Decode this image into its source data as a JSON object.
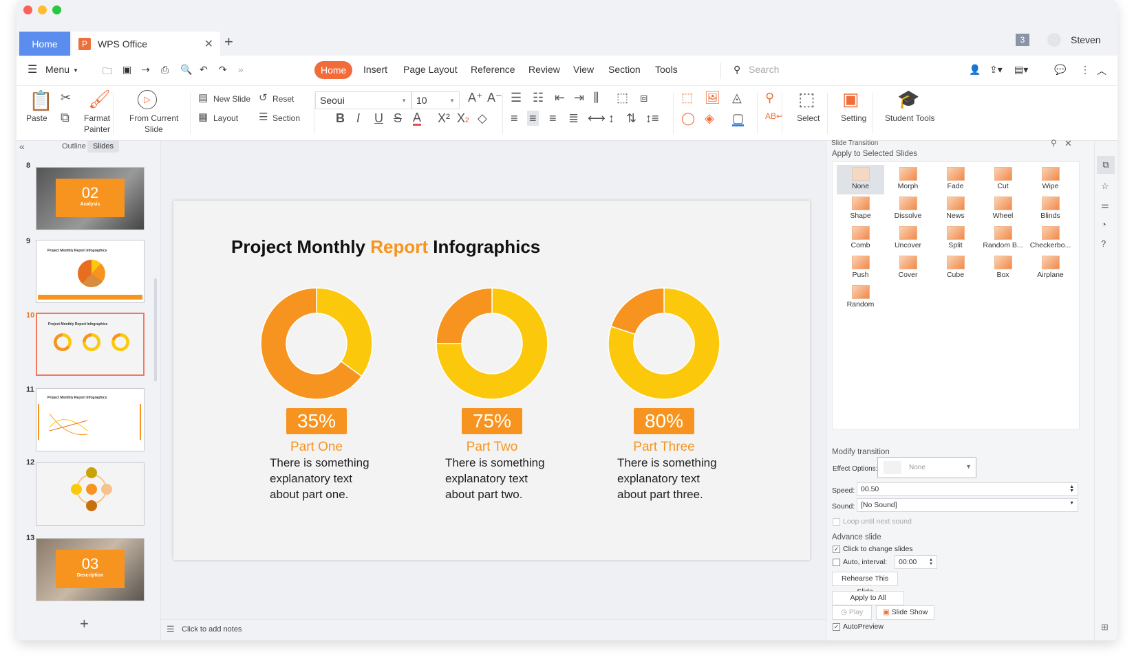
{
  "window": {
    "home_tab": "Home",
    "doc_tab": "WPS Office",
    "badge": "3",
    "user": "Steven"
  },
  "menubar": {
    "menu_label": "Menu",
    "tabs": [
      "Home",
      "Insert",
      "Page Layout",
      "Reference",
      "Review",
      "View",
      "Section",
      "Tools"
    ],
    "active_tab": "Home",
    "search_placeholder": "Search"
  },
  "ribbon": {
    "paste": "Paste",
    "format_painter_1": "Farmat",
    "format_painter_2": "Painter",
    "from_current_1": "From Current",
    "from_current_2": "Slide",
    "new_slide": "New Slide",
    "reset": "Reset",
    "layout": "Layout",
    "section": "Section",
    "font": "Seoui",
    "size": "10",
    "select": "Select",
    "setting": "Setting",
    "student_tools": "Student Tools"
  },
  "left_panel": {
    "tabs": [
      "Outline",
      "Slides"
    ],
    "active_tab": "Slides",
    "slides": [
      {
        "number": "8",
        "big": "02",
        "sub": "Analysis"
      },
      {
        "number": "9",
        "title": "Project Monthly Report Infographics"
      },
      {
        "number": "10",
        "title": "Project Monthly Report Infographics"
      },
      {
        "number": "11",
        "title": "Project Monthly Report Infographics"
      },
      {
        "number": "12"
      },
      {
        "number": "13",
        "big": "03",
        "sub": "Description"
      }
    ],
    "active_slide": "10"
  },
  "slide": {
    "title_1": "Project Monthly ",
    "title_2": "Report",
    "title_3": " Infographics",
    "parts": [
      {
        "pct": "35%",
        "name": "Part One",
        "lines": [
          "There is something",
          "explanatory text",
          "about part one."
        ]
      },
      {
        "pct": "75%",
        "name": "Part Two",
        "lines": [
          "There is something",
          "explanatory text",
          "about part two."
        ]
      },
      {
        "pct": "80%",
        "name": "Part Three",
        "lines": [
          "There is something",
          "explanatory text",
          "about part three."
        ]
      }
    ]
  },
  "chart_data": [
    {
      "type": "pie",
      "donut": true,
      "label": "Part One",
      "values": [
        35,
        65
      ],
      "colors": [
        "#fcc80c",
        "#f7941f"
      ]
    },
    {
      "type": "pie",
      "donut": true,
      "label": "Part Two",
      "values": [
        75,
        25
      ],
      "colors": [
        "#fcc80c",
        "#f7941f"
      ]
    },
    {
      "type": "pie",
      "donut": true,
      "label": "Part Three",
      "values": [
        80,
        20
      ],
      "colors": [
        "#fcc80c",
        "#f7941f"
      ]
    }
  ],
  "notes": {
    "placeholder": "Click to add notes"
  },
  "transition": {
    "header": "Slide Transition",
    "apply_selected": "Apply to Selected Slides",
    "effects": [
      "None",
      "Morph",
      "Fade",
      "Cut",
      "Wipe",
      "Shape",
      "Dissolve",
      "News",
      "Wheel",
      "Blinds",
      "Comb",
      "Uncover",
      "Split",
      "Random B...",
      "Checkerbo...",
      "Push",
      "Cover",
      "Cube",
      "Box",
      "Airplane",
      "Random"
    ],
    "selected": "None",
    "modify": "Modify transition",
    "effect_options_label": "Effect Options:",
    "effect_options_value": "None",
    "speed_label": "Speed:",
    "speed_value": "00.50",
    "sound_label": "Sound:",
    "sound_value": "[No Sound]",
    "loop": "Loop until next sound",
    "advance": "Advance slide",
    "click_change": "Click to change slides",
    "click_change_checked": true,
    "auto_interval": "Auto, interval:",
    "auto_checked": false,
    "interval_value": "00:00",
    "rehearse": "Rehearse This Slide",
    "apply_all": "Apply to All",
    "play": "Play",
    "slide_show": "Slide Show",
    "autopreview": "AutoPreview",
    "autopreview_checked": true
  },
  "colors": {
    "accent": "#f7941f",
    "yellow": "#fcc80c",
    "tab_active": "#f26b3a",
    "home_tab": "#5b8def"
  }
}
